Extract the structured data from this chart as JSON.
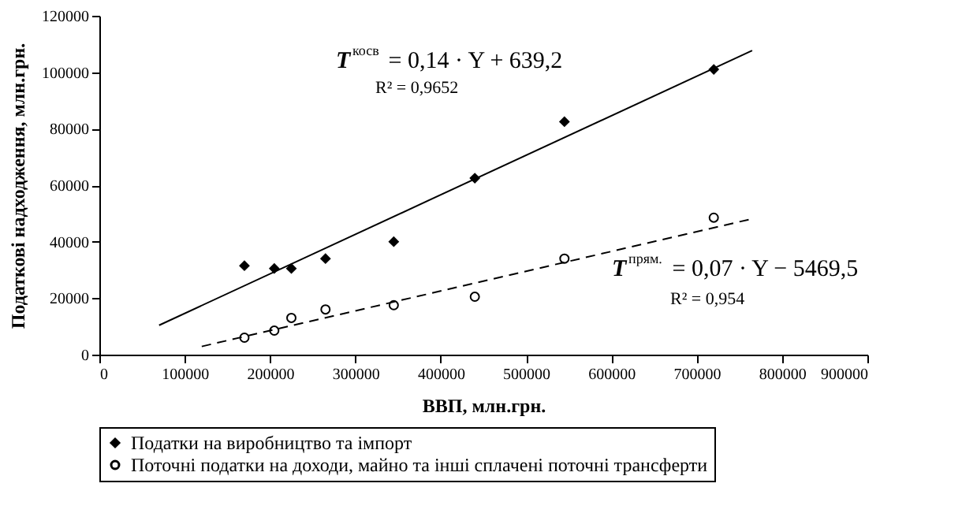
{
  "chart_data": {
    "type": "scatter",
    "xlabel": "ВВП, млн.грн.",
    "ylabel": "Податкові надходження, млн.грн.",
    "xlim": [
      0,
      900000
    ],
    "xticks": [
      0,
      100000,
      200000,
      300000,
      400000,
      500000,
      600000,
      700000,
      800000,
      900000
    ],
    "ylim": [
      0,
      120000
    ],
    "yticks": [
      0,
      20000,
      40000,
      60000,
      80000,
      100000,
      120000
    ],
    "grid": false,
    "legend": "bottom",
    "series": [
      {
        "name": "Податки на виробництво та імпорт",
        "marker": "diamond",
        "color": "#000000",
        "x": [
          170000,
          205000,
          225000,
          265000,
          345000,
          440000,
          545000,
          720000
        ],
        "values": [
          31500,
          30500,
          30500,
          34000,
          40000,
          62500,
          82500,
          101000
        ]
      },
      {
        "name": "Поточні податки на доходи, майно та інші сплачені поточні трансферти",
        "marker": "circle",
        "color": "#000000",
        "x": [
          170000,
          205000,
          225000,
          265000,
          345000,
          440000,
          545000,
          720000
        ],
        "values": [
          6000,
          8500,
          13000,
          16000,
          17500,
          20500,
          34000,
          48500
        ]
      },
      {
        "type": "line",
        "line_style": "solid",
        "marker": "none",
        "color": "#000000",
        "x": [
          70000,
          765000
        ],
        "values": [
          10400,
          107700
        ]
      },
      {
        "type": "line",
        "line_style": "dashed",
        "marker": "none",
        "color": "#000000",
        "x": [
          120000,
          765000
        ],
        "values": [
          2900,
          48100
        ]
      }
    ],
    "annotations": [
      "T$^{косв}$ = 0,14 · Y + 639,2",
      "R² = 0,9652",
      "T$^{прям.}$ = 0,07 · Y − 5469,5",
      "R² = 0,954"
    ]
  }
}
